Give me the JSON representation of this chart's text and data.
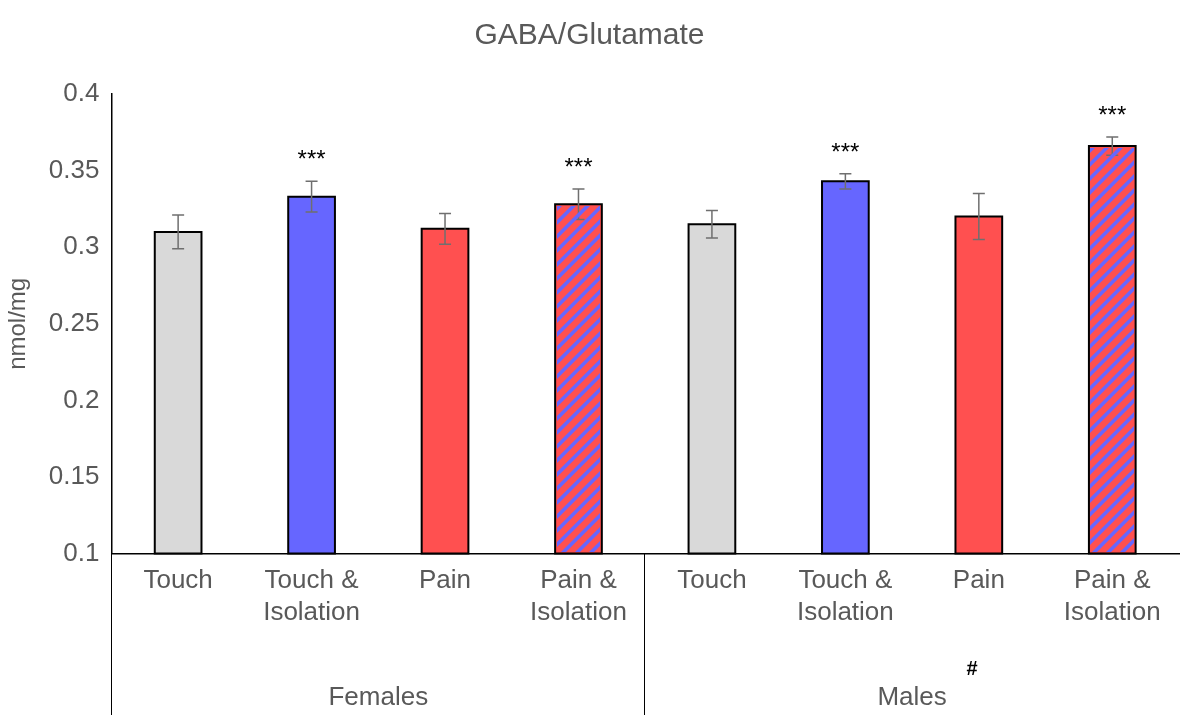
{
  "chart_data": {
    "type": "bar",
    "title": "GABA/Glutamate",
    "ylabel": "nmol/mg",
    "categories": [
      "Touch",
      "Touch & Isolation",
      "Pain",
      "Pain & Isolation",
      "Touch",
      "Touch & Isolation",
      "Pain",
      "Pain & Isolation"
    ],
    "values": [
      0.31,
      0.333,
      0.312,
      0.328,
      0.315,
      0.343,
      0.32,
      0.366
    ],
    "errors": [
      0.011,
      0.01,
      0.01,
      0.01,
      0.009,
      0.005,
      0.015,
      0.006
    ],
    "colors": [
      "#d9d9d9",
      "#6666ff",
      "#ff5050",
      "#ff5050",
      "#d9d9d9",
      "#6666ff",
      "#ff5050",
      "#ff5050"
    ],
    "ylim": [
      0.1,
      0.4
    ],
    "yticks": [
      0.1,
      0.15,
      0.2,
      0.25,
      0.3,
      0.35,
      0.4
    ],
    "grid": false,
    "legend": false,
    "annotations": [
      "***",
      "***",
      "***",
      "***",
      "Females",
      "Males",
      "#"
    ]
  }
}
